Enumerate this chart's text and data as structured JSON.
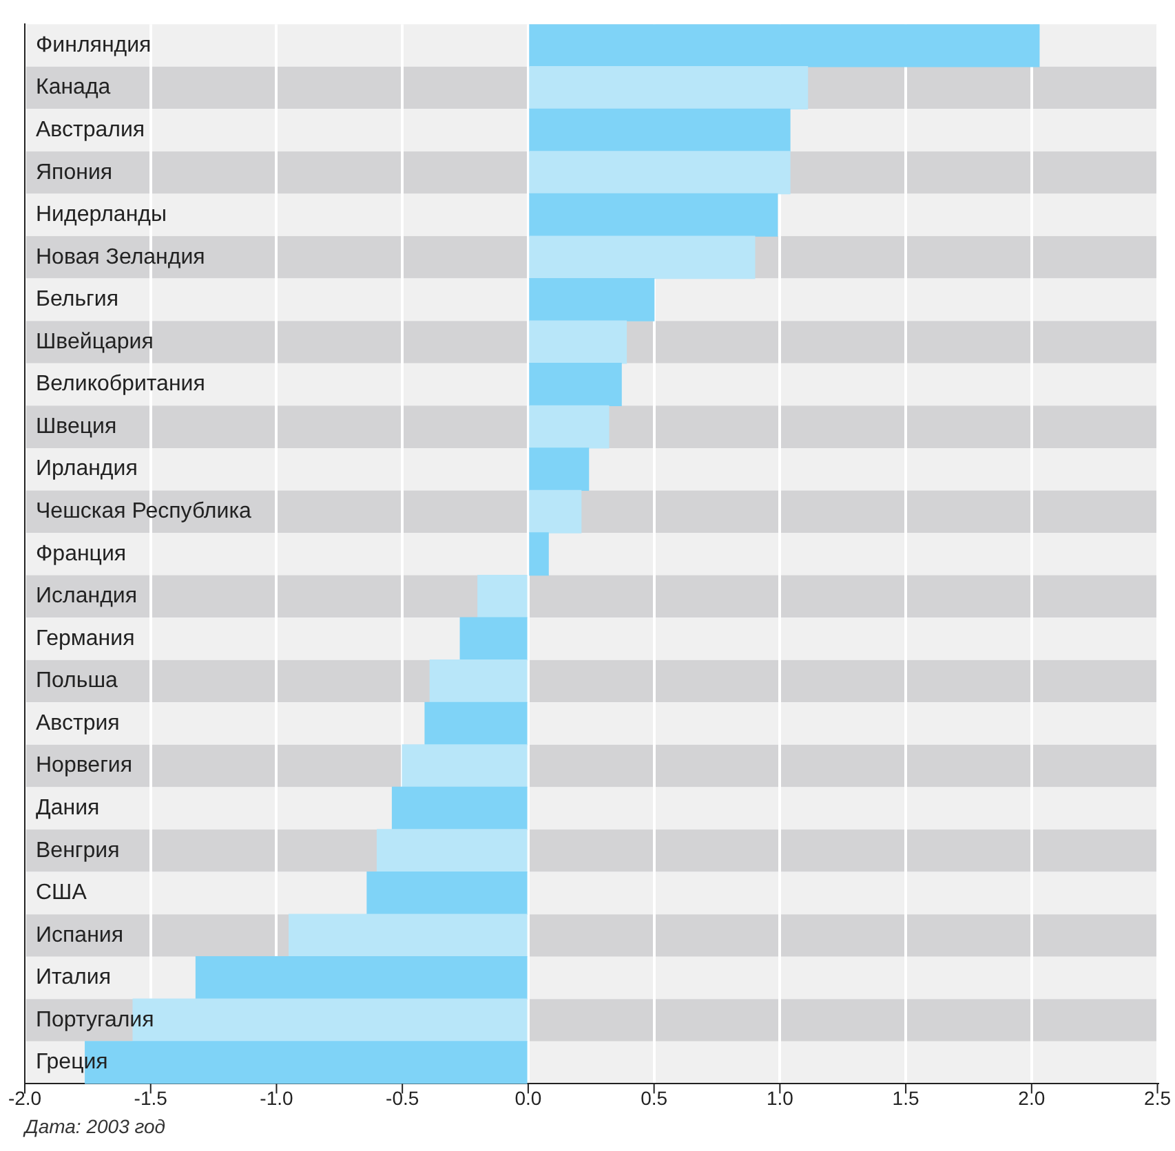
{
  "chart_data": {
    "type": "bar",
    "orientation": "horizontal",
    "categories": [
      "Финляндия",
      "Канада",
      "Австралия",
      "Япония",
      "Нидерланды",
      "Новая Зеландия",
      "Бельгия",
      "Швейцария",
      "Великобритания",
      "Швеция",
      "Ирландия",
      "Чешская Республика",
      "Франция",
      "Исландия",
      "Германия",
      "Польша",
      "Австрия",
      "Норвегия",
      "Дания",
      "Венгрия",
      "США",
      "Испания",
      "Италия",
      "Португалия",
      "Греция"
    ],
    "values": [
      2.03,
      1.11,
      1.04,
      1.04,
      0.99,
      0.9,
      0.5,
      0.39,
      0.37,
      0.32,
      0.24,
      0.21,
      0.08,
      -0.2,
      -0.27,
      -0.39,
      -0.41,
      -0.5,
      -0.54,
      -0.6,
      -0.64,
      -0.95,
      -1.32,
      -1.57,
      -1.76
    ],
    "colors": [
      "#7fd3f7",
      "#b8e6f9",
      "#7fd3f7",
      "#b8e6f9",
      "#7fd3f7",
      "#b8e6f9",
      "#7fd3f7",
      "#b8e6f9",
      "#7fd3f7",
      "#b8e6f9",
      "#7fd3f7",
      "#b8e6f9",
      "#7fd3f7",
      "#b8e6f9",
      "#7fd3f7",
      "#b8e6f9",
      "#7fd3f7",
      "#b8e6f9",
      "#7fd3f7",
      "#b8e6f9",
      "#7fd3f7",
      "#b8e6f9",
      "#7fd3f7",
      "#b8e6f9",
      "#7fd3f7"
    ],
    "xlim": [
      -2.0,
      2.5
    ],
    "xticks": [
      {
        "value": -2,
        "label": "-2.0"
      },
      {
        "value": -1.5,
        "label": "-1.5"
      },
      {
        "value": -1,
        "label": "-1.0"
      },
      {
        "value": -0.5,
        "label": "-0.5"
      },
      {
        "value": 0,
        "label": "0.0"
      },
      {
        "value": 0.5,
        "label": "0.5"
      },
      {
        "value": 1,
        "label": "1.0"
      },
      {
        "value": 1.5,
        "label": "1.5"
      },
      {
        "value": 2,
        "label": "2.0"
      },
      {
        "value": 2.5,
        "label": "2.5"
      }
    ],
    "grid": "x",
    "legend": false,
    "annotations": [
      "Дата: 2003 год"
    ]
  }
}
